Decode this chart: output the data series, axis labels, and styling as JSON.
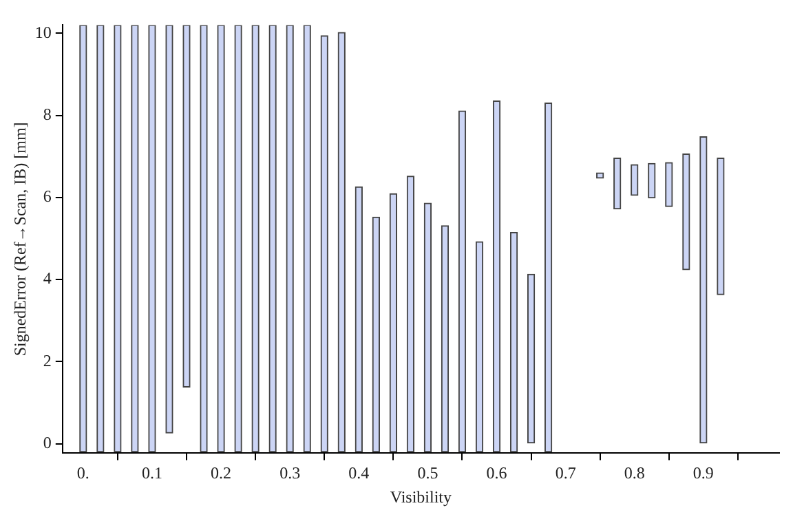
{
  "chart_data": {
    "type": "bar",
    "xlabel": "Visibility",
    "ylabel": "SignedError (Ref→Scan, IB) [mm]",
    "x": [
      0,
      0.025,
      0.05,
      0.075,
      0.1,
      0.125,
      0.15,
      0.175,
      0.2,
      0.225,
      0.25,
      0.275,
      0.3,
      0.325,
      0.35,
      0.375,
      0.4,
      0.425,
      0.45,
      0.475,
      0.5,
      0.525,
      0.55,
      0.575,
      0.6,
      0.625,
      0.65,
      0.675,
      0.75,
      0.775,
      0.8,
      0.825,
      0.85,
      0.875,
      0.9,
      0.925
    ],
    "base": [
      -0.2,
      -0.2,
      -0.2,
      -0.2,
      -0.2,
      0.26,
      1.38,
      -0.2,
      -0.2,
      -0.2,
      -0.2,
      -0.2,
      -0.2,
      -0.2,
      -0.2,
      -0.2,
      -0.2,
      -0.2,
      -0.2,
      -0.2,
      -0.2,
      -0.2,
      -0.2,
      -0.2,
      -0.2,
      -0.2,
      0,
      -0.2,
      6.47,
      5.72,
      6.05,
      5.99,
      5.78,
      4.24,
      0,
      3.63
    ],
    "values": [
      10.4,
      10.4,
      10.4,
      10.4,
      10.4,
      9.94,
      8.82,
      10.4,
      10.4,
      10.4,
      10.4,
      10.4,
      10.4,
      10.4,
      10.14,
      10.22,
      6.46,
      5.72,
      6.29,
      6.72,
      6.06,
      5.51,
      8.31,
      5.12,
      8.55,
      5.35,
      4.13,
      8.5,
      0.13,
      1.24,
      0.75,
      0.84,
      1.07,
      2.82,
      7.48,
      3.33
    ],
    "color": "#ccd5f5",
    "xlim": [
      -0.03,
      1.01
    ],
    "ylim": [
      -0.23,
      10.2
    ],
    "xticks": [
      {
        "value": 0,
        "label": "0."
      },
      0.1,
      0.2,
      0.3,
      0.4,
      0.5,
      0.6,
      0.7,
      0.8,
      0.9
    ],
    "yticks": [
      0,
      2,
      4,
      6,
      8,
      10
    ],
    "grid": false,
    "legend": false
  }
}
